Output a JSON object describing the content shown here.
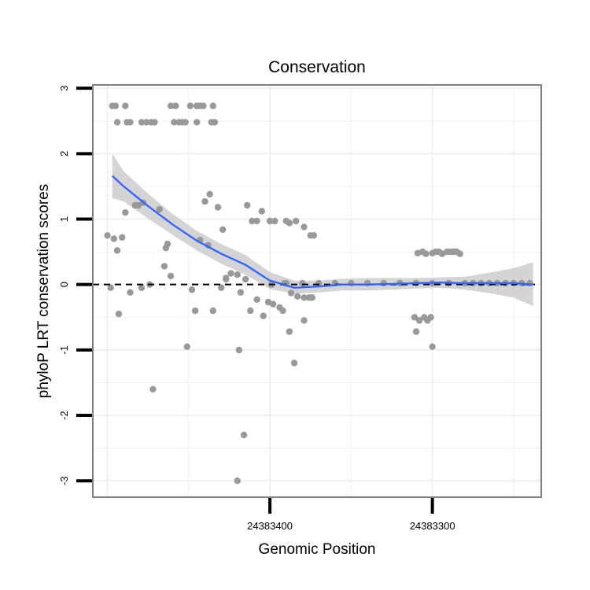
{
  "chart_data": {
    "type": "scatter",
    "title": "Conservation",
    "xlabel": "Genomic Position",
    "ylabel": "phyloP LRT conservation scores",
    "ylim": [
      -3.25,
      3.05
    ],
    "xlim": [
      24383509,
      24383233
    ],
    "x_reversed": true,
    "yticks": [
      {
        "value": 3,
        "label": "3"
      },
      {
        "value": 2,
        "label": "2"
      },
      {
        "value": 1,
        "label": "1"
      },
      {
        "value": 0,
        "label": "0"
      },
      {
        "value": -1,
        "label": "-1"
      },
      {
        "value": -2,
        "label": "-2"
      },
      {
        "value": -3,
        "label": "-3"
      }
    ],
    "xticks": [
      {
        "value": 24383400,
        "label": "24383400"
      },
      {
        "value": 24383300,
        "label": "24383300"
      }
    ],
    "reference_line": {
      "y": 0,
      "style": "dashed"
    },
    "colors": {
      "points": "#999999",
      "smooth": "#3366ff",
      "ribbon": "#cccccc",
      "grid": "#f0f0f0",
      "border": "#808080"
    },
    "points": [
      {
        "x": 24383497,
        "y": 2.73
      },
      {
        "x": 24383495,
        "y": 2.73
      },
      {
        "x": 24383489,
        "y": 2.73
      },
      {
        "x": 24383461,
        "y": 2.73
      },
      {
        "x": 24383458,
        "y": 2.73
      },
      {
        "x": 24383449,
        "y": 2.73
      },
      {
        "x": 24383445,
        "y": 2.73
      },
      {
        "x": 24383443,
        "y": 2.73
      },
      {
        "x": 24383441,
        "y": 2.73
      },
      {
        "x": 24383435,
        "y": 2.73
      },
      {
        "x": 24383494,
        "y": 2.48
      },
      {
        "x": 24383488,
        "y": 2.48
      },
      {
        "x": 24383486,
        "y": 2.48
      },
      {
        "x": 24383479,
        "y": 2.48
      },
      {
        "x": 24383476,
        "y": 2.48
      },
      {
        "x": 24383473,
        "y": 2.48
      },
      {
        "x": 24383471,
        "y": 2.48
      },
      {
        "x": 24383459,
        "y": 2.48
      },
      {
        "x": 24383456,
        "y": 2.48
      },
      {
        "x": 24383454,
        "y": 2.48
      },
      {
        "x": 24383452,
        "y": 2.48
      },
      {
        "x": 24383445,
        "y": 2.48
      },
      {
        "x": 24383436,
        "y": 2.48
      },
      {
        "x": 24383434,
        "y": 2.48
      },
      {
        "x": 24383437,
        "y": 1.38
      },
      {
        "x": 24383440,
        "y": 1.27
      },
      {
        "x": 24383414,
        "y": 1.21
      },
      {
        "x": 24383481,
        "y": 1.21
      },
      {
        "x": 24383483,
        "y": 1.21
      },
      {
        "x": 24383478,
        "y": 1.25
      },
      {
        "x": 24383489,
        "y": 1.1
      },
      {
        "x": 24383468,
        "y": 1.15
      },
      {
        "x": 24383432,
        "y": 1.18
      },
      {
        "x": 24383405,
        "y": 1.12
      },
      {
        "x": 24383411,
        "y": 0.97
      },
      {
        "x": 24383408,
        "y": 0.97
      },
      {
        "x": 24383400,
        "y": 0.97
      },
      {
        "x": 24383397,
        "y": 0.97
      },
      {
        "x": 24383390,
        "y": 0.97
      },
      {
        "x": 24383384,
        "y": 0.97
      },
      {
        "x": 24383388,
        "y": 0.94
      },
      {
        "x": 24383379,
        "y": 0.88
      },
      {
        "x": 24383429,
        "y": 0.84
      },
      {
        "x": 24383375,
        "y": 0.75
      },
      {
        "x": 24383373,
        "y": 0.75
      },
      {
        "x": 24383500,
        "y": 0.75
      },
      {
        "x": 24383496,
        "y": 0.7
      },
      {
        "x": 24383491,
        "y": 0.72
      },
      {
        "x": 24383443,
        "y": 0.68
      },
      {
        "x": 24383438,
        "y": 0.6
      },
      {
        "x": 24383463,
        "y": 0.62
      },
      {
        "x": 24383464,
        "y": 0.56
      },
      {
        "x": 24383494,
        "y": 0.52
      },
      {
        "x": 24383465,
        "y": 0.28
      },
      {
        "x": 24383461,
        "y": 0.13
      },
      {
        "x": 24383424,
        "y": 0.17
      },
      {
        "x": 24383420,
        "y": 0.15
      },
      {
        "x": 24383427,
        "y": 0.08
      },
      {
        "x": 24383415,
        "y": 0.08
      },
      {
        "x": 24383427,
        "y": 0.1
      },
      {
        "x": 24383474,
        "y": 0.0
      },
      {
        "x": 24383399,
        "y": 0.0
      },
      {
        "x": 24383391,
        "y": 0.02
      },
      {
        "x": 24383498,
        "y": -0.05
      },
      {
        "x": 24383479,
        "y": -0.05
      },
      {
        "x": 24383486,
        "y": -0.12
      },
      {
        "x": 24383448,
        "y": -0.08
      },
      {
        "x": 24383430,
        "y": -0.05
      },
      {
        "x": 24383418,
        "y": -0.12
      },
      {
        "x": 24383387,
        "y": -0.13
      },
      {
        "x": 24383383,
        "y": -0.18
      },
      {
        "x": 24383379,
        "y": -0.2
      },
      {
        "x": 24383376,
        "y": -0.2
      },
      {
        "x": 24383374,
        "y": -0.2
      },
      {
        "x": 24383408,
        "y": -0.23
      },
      {
        "x": 24383401,
        "y": -0.27
      },
      {
        "x": 24383398,
        "y": -0.3
      },
      {
        "x": 24383394,
        "y": -0.35
      },
      {
        "x": 24383392,
        "y": -0.4
      },
      {
        "x": 24383412,
        "y": -0.4
      },
      {
        "x": 24383435,
        "y": -0.4
      },
      {
        "x": 24383446,
        "y": -0.4
      },
      {
        "x": 24383404,
        "y": -0.48
      },
      {
        "x": 24383493,
        "y": -0.45
      },
      {
        "x": 24383379,
        "y": -0.55
      },
      {
        "x": 24383388,
        "y": -0.72
      },
      {
        "x": 24383451,
        "y": -0.95
      },
      {
        "x": 24383419,
        "y": -1.0
      },
      {
        "x": 24383385,
        "y": -1.2
      },
      {
        "x": 24383472,
        "y": -1.6
      },
      {
        "x": 24383416,
        "y": -2.3
      },
      {
        "x": 24383420,
        "y": -3.0
      },
      {
        "x": 24383309,
        "y": 0.48
      },
      {
        "x": 24383306,
        "y": 0.5
      },
      {
        "x": 24383304,
        "y": 0.47
      },
      {
        "x": 24383300,
        "y": 0.48
      },
      {
        "x": 24383298,
        "y": 0.5
      },
      {
        "x": 24383296,
        "y": 0.5
      },
      {
        "x": 24383294,
        "y": 0.47
      },
      {
        "x": 24383291,
        "y": 0.5
      },
      {
        "x": 24383289,
        "y": 0.5
      },
      {
        "x": 24383287,
        "y": 0.5
      },
      {
        "x": 24383285,
        "y": 0.5
      },
      {
        "x": 24383283,
        "y": 0.47
      },
      {
        "x": 24383311,
        "y": -0.5
      },
      {
        "x": 24383308,
        "y": -0.55
      },
      {
        "x": 24383305,
        "y": -0.5
      },
      {
        "x": 24383303,
        "y": -0.55
      },
      {
        "x": 24383301,
        "y": -0.5
      },
      {
        "x": 24383310,
        "y": -0.72
      },
      {
        "x": 24383300,
        "y": -0.95
      },
      {
        "x": 24383390,
        "y": 0.02
      },
      {
        "x": 24383380,
        "y": 0.02
      },
      {
        "x": 24383370,
        "y": 0.02
      },
      {
        "x": 24383360,
        "y": 0.02
      },
      {
        "x": 24383350,
        "y": 0.02
      },
      {
        "x": 24383340,
        "y": 0.02
      },
      {
        "x": 24383330,
        "y": 0.02
      },
      {
        "x": 24383320,
        "y": 0.02
      },
      {
        "x": 24383310,
        "y": 0.02
      },
      {
        "x": 24383300,
        "y": 0.02
      },
      {
        "x": 24383290,
        "y": 0.02
      },
      {
        "x": 24383280,
        "y": 0.02
      },
      {
        "x": 24383275,
        "y": 0.02
      },
      {
        "x": 24383270,
        "y": 0.02
      },
      {
        "x": 24383265,
        "y": 0.02
      },
      {
        "x": 24383260,
        "y": 0.02
      },
      {
        "x": 24383255,
        "y": 0.02
      },
      {
        "x": 24383250,
        "y": 0.02
      },
      {
        "x": 24383245,
        "y": 0.02
      },
      {
        "x": 24383240,
        "y": 0.02
      }
    ],
    "smooth": [
      {
        "x": 24383497,
        "y": 1.66,
        "lo": 1.32,
        "hi": 2.0
      },
      {
        "x": 24383490,
        "y": 1.5,
        "lo": 1.27,
        "hi": 1.73
      },
      {
        "x": 24383475,
        "y": 1.2,
        "lo": 1.01,
        "hi": 1.39
      },
      {
        "x": 24383460,
        "y": 0.92,
        "lo": 0.76,
        "hi": 1.08
      },
      {
        "x": 24383445,
        "y": 0.67,
        "lo": 0.52,
        "hi": 0.82
      },
      {
        "x": 24383430,
        "y": 0.47,
        "lo": 0.32,
        "hi": 0.62
      },
      {
        "x": 24383415,
        "y": 0.3,
        "lo": 0.15,
        "hi": 0.45
      },
      {
        "x": 24383400,
        "y": 0.06,
        "lo": -0.07,
        "hi": 0.19
      },
      {
        "x": 24383385,
        "y": -0.05,
        "lo": -0.14,
        "hi": 0.06
      },
      {
        "x": 24383370,
        "y": -0.03,
        "lo": -0.12,
        "hi": 0.06
      },
      {
        "x": 24383355,
        "y": 0.0,
        "lo": -0.09,
        "hi": 0.09
      },
      {
        "x": 24383340,
        "y": 0.0,
        "lo": -0.09,
        "hi": 0.1
      },
      {
        "x": 24383325,
        "y": 0.01,
        "lo": -0.08,
        "hi": 0.1
      },
      {
        "x": 24383310,
        "y": 0.02,
        "lo": -0.06,
        "hi": 0.1
      },
      {
        "x": 24383295,
        "y": 0.03,
        "lo": -0.05,
        "hi": 0.11
      },
      {
        "x": 24383280,
        "y": 0.02,
        "lo": -0.08,
        "hi": 0.12
      },
      {
        "x": 24383265,
        "y": 0.02,
        "lo": -0.13,
        "hi": 0.18
      },
      {
        "x": 24383250,
        "y": 0.02,
        "lo": -0.2,
        "hi": 0.25
      },
      {
        "x": 24383238,
        "y": 0.0,
        "lo": -0.33,
        "hi": 0.34
      }
    ]
  }
}
